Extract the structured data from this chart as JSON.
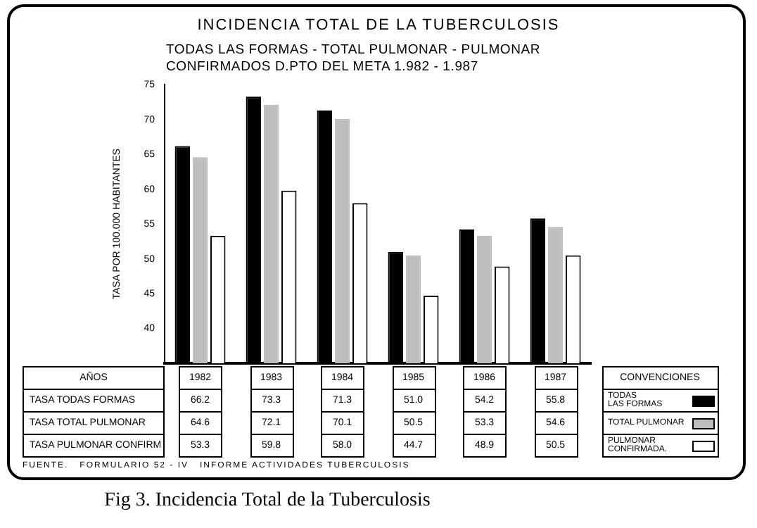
{
  "chart_data": {
    "type": "bar",
    "title": "INCIDENCIA TOTAL DE LA TUBERCULOSIS",
    "subtitle": "TODAS LAS FORMAS - TOTAL PULMONAR - PULMONAR CONFIRMADOS    D.PTO DEL META 1.982 - 1.987",
    "ylabel": "TASA POR 100.000 HABITANTES",
    "legend_title": "CONVENCIONES",
    "categories": [
      "1982",
      "1983",
      "1984",
      "1985",
      "1986",
      "1987"
    ],
    "series": [
      {
        "name": "TODAS LAS FORMAS",
        "color": "#000000",
        "values": [
          66.2,
          73.3,
          71.3,
          51.0,
          54.2,
          55.8
        ],
        "value_labels": [
          "66.2",
          "73.3",
          "71.3",
          "51.0",
          "54.2",
          "55.8"
        ]
      },
      {
        "name": "TOTAL PULMONAR",
        "color": "#bdbdbd",
        "values": [
          64.6,
          72.1,
          70.1,
          50.5,
          53.3,
          54.6
        ],
        "value_labels": [
          "64.6",
          "72.1",
          "70.1",
          "50.5",
          "53.3",
          "54.6"
        ]
      },
      {
        "name": "PULMONAR CONFIRMADA.",
        "color": "#ffffff",
        "values": [
          53.3,
          59.8,
          58.0,
          44.7,
          48.9,
          50.5
        ],
        "value_labels": [
          "53.3",
          "59.8",
          "58.0",
          "44.7",
          "48.9",
          "50.5"
        ]
      }
    ],
    "ylim": [
      35,
      75
    ],
    "yticks": [
      40,
      45,
      50,
      55,
      60,
      65,
      70,
      75
    ],
    "grid": false,
    "legend": "bottom right",
    "annotations": [
      "AÑOS",
      "TASA TODAS FORMAS",
      "TASA TOTAL PULMONAR",
      "TASA PULMONAR CONFIRM",
      "FUENTE.   FORMULARIO 52 - IV   INFORME ACTIVIDADES TUBERCULOSIS",
      "Fig 3. Incidencia Total de la Tuberculosis"
    ]
  }
}
